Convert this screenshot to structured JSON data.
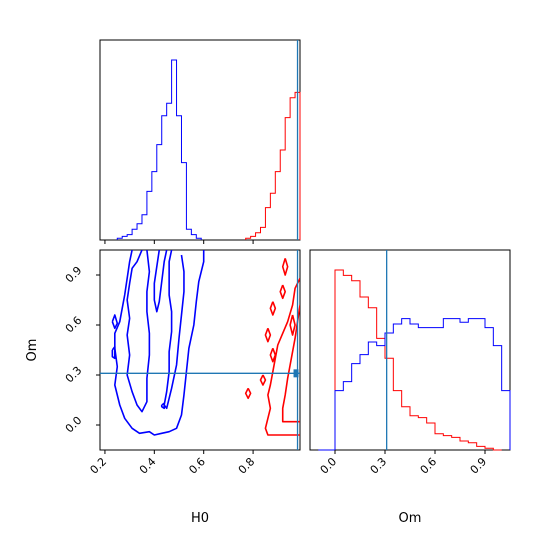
{
  "chart_data": {
    "type": "corner",
    "colors": {
      "series_a": "#0000ff",
      "series_b": "#ff0000",
      "truth": "#1f77b4"
    },
    "truth": {
      "H0": 0.98,
      "Om": 0.31
    },
    "panels": [
      {
        "id": "hist_H0",
        "type": "histogram",
        "xlim": [
          0.18,
          0.99
        ],
        "series": [
          {
            "color_key": "series_a",
            "bin_edges": [
              0.25,
              0.27,
              0.29,
              0.31,
              0.33,
              0.35,
              0.37,
              0.39,
              0.41,
              0.43,
              0.45,
              0.47,
              0.49,
              0.51,
              0.53,
              0.55,
              0.57,
              0.59
            ],
            "counts": [
              0.01,
              0.02,
              0.03,
              0.06,
              0.09,
              0.14,
              0.27,
              0.38,
              0.53,
              0.69,
              0.76,
              1.0,
              0.69,
              0.43,
              0.06,
              0.03,
              0.01
            ]
          },
          {
            "color_key": "series_b",
            "bin_edges": [
              0.77,
              0.79,
              0.81,
              0.83,
              0.85,
              0.87,
              0.89,
              0.91,
              0.93,
              0.95,
              0.97,
              0.99
            ],
            "counts": [
              0.01,
              0.02,
              0.04,
              0.07,
              0.18,
              0.26,
              0.38,
              0.5,
              0.68,
              0.79,
              0.82
            ]
          }
        ]
      },
      {
        "id": "hist_Om",
        "type": "histogram",
        "xlim": [
          -0.15,
          1.05
        ],
        "series": [
          {
            "color_key": "series_b",
            "bin_edges": [
              0.0,
              0.05,
              0.1,
              0.15,
              0.2,
              0.25,
              0.3,
              0.35,
              0.4,
              0.45,
              0.5,
              0.55,
              0.6,
              0.65,
              0.7,
              0.75,
              0.8,
              0.85,
              0.9,
              0.95,
              1.0
            ],
            "counts": [
              1.0,
              0.97,
              0.94,
              0.85,
              0.79,
              0.62,
              0.51,
              0.33,
              0.24,
              0.19,
              0.18,
              0.15,
              0.09,
              0.08,
              0.07,
              0.05,
              0.04,
              0.02,
              0.01,
              0.0
            ]
          },
          {
            "color_key": "series_a",
            "bin_edges": [
              -0.1,
              -0.05,
              0.0,
              0.05,
              0.1,
              0.15,
              0.2,
              0.25,
              0.3,
              0.35,
              0.4,
              0.45,
              0.5,
              0.55,
              0.6,
              0.65,
              0.7,
              0.75,
              0.8,
              0.85,
              0.9,
              0.95,
              1.0,
              1.05
            ],
            "counts": [
              0.0,
              0.0,
              0.33,
              0.38,
              0.48,
              0.53,
              0.6,
              0.58,
              0.65,
              0.7,
              0.73,
              0.7,
              0.68,
              0.68,
              0.68,
              0.73,
              0.73,
              0.71,
              0.73,
              0.73,
              0.68,
              0.58,
              0.33
            ]
          }
        ]
      },
      {
        "id": "contour_H0_Om",
        "type": "contour",
        "xlim": [
          0.18,
          0.99
        ],
        "ylim": [
          -0.15,
          1.05
        ],
        "series": [
          {
            "color_key": "series_a",
            "paths": [
              [
                [
                  0.31,
                  1.05
                ],
                [
                  0.3,
                  0.98
                ],
                [
                  0.29,
                  0.88
                ],
                [
                  0.28,
                  0.78
                ],
                [
                  0.27,
                  0.7
                ],
                [
                  0.26,
                  0.62
                ],
                [
                  0.24,
                  0.55
                ],
                [
                  0.24,
                  0.46
                ],
                [
                  0.25,
                  0.35
                ],
                [
                  0.24,
                  0.24
                ],
                [
                  0.26,
                  0.12
                ],
                [
                  0.28,
                  0.04
                ],
                [
                  0.31,
                  -0.02
                ],
                [
                  0.34,
                  -0.05
                ],
                [
                  0.38,
                  -0.04
                ],
                [
                  0.4,
                  -0.06
                ],
                [
                  0.43,
                  -0.05
                ],
                [
                  0.46,
                  -0.04
                ],
                [
                  0.49,
                  -0.02
                ],
                [
                  0.51,
                  0.06
                ],
                [
                  0.52,
                  0.18
                ],
                [
                  0.53,
                  0.32
                ],
                [
                  0.54,
                  0.46
                ],
                [
                  0.56,
                  0.6
                ],
                [
                  0.57,
                  0.74
                ],
                [
                  0.58,
                  0.86
                ],
                [
                  0.6,
                  0.98
                ],
                [
                  0.6,
                  1.05
                ]
              ],
              [
                [
                  0.35,
                  1.05
                ],
                [
                  0.33,
                  0.98
                ],
                [
                  0.31,
                  0.94
                ],
                [
                  0.3,
                  0.85
                ],
                [
                  0.29,
                  0.75
                ],
                [
                  0.3,
                  0.64
                ],
                [
                  0.29,
                  0.54
                ],
                [
                  0.3,
                  0.42
                ],
                [
                  0.29,
                  0.3
                ],
                [
                  0.31,
                  0.2
                ],
                [
                  0.33,
                  0.12
                ],
                [
                  0.35,
                  0.08
                ],
                [
                  0.37,
                  0.14
                ],
                [
                  0.37,
                  0.28
                ],
                [
                  0.38,
                  0.42
                ],
                [
                  0.38,
                  0.55
                ],
                [
                  0.37,
                  0.68
                ],
                [
                  0.37,
                  0.8
                ],
                [
                  0.38,
                  0.92
                ],
                [
                  0.37,
                  1.05
                ]
              ],
              [
                [
                  0.42,
                  1.05
                ],
                [
                  0.41,
                  0.95
                ],
                [
                  0.4,
                  0.85
                ],
                [
                  0.4,
                  0.75
                ],
                [
                  0.41,
                  0.68
                ],
                [
                  0.42,
                  0.74
                ],
                [
                  0.43,
                  0.86
                ],
                [
                  0.44,
                  0.98
                ],
                [
                  0.45,
                  1.05
                ]
              ],
              [
                [
                  0.47,
                  1.05
                ],
                [
                  0.46,
                  0.98
                ],
                [
                  0.46,
                  0.88
                ],
                [
                  0.46,
                  0.78
                ],
                [
                  0.47,
                  0.68
                ],
                [
                  0.47,
                  0.56
                ],
                [
                  0.46,
                  0.44
                ],
                [
                  0.46,
                  0.32
                ],
                [
                  0.45,
                  0.2
                ],
                [
                  0.44,
                  0.12
                ],
                [
                  0.45,
                  0.1
                ],
                [
                  0.47,
                  0.22
                ],
                [
                  0.49,
                  0.36
                ],
                [
                  0.5,
                  0.52
                ],
                [
                  0.51,
                  0.66
                ],
                [
                  0.52,
                  0.8
                ],
                [
                  0.52,
                  0.92
                ],
                [
                  0.51,
                  1.02
                ]
              ],
              [
                [
                  0.23,
                  0.62
                ],
                [
                  0.24,
                  0.66
                ],
                [
                  0.25,
                  0.61
                ],
                [
                  0.24,
                  0.58
                ],
                [
                  0.23,
                  0.62
                ]
              ],
              [
                [
                  0.23,
                  0.45
                ],
                [
                  0.24,
                  0.47
                ],
                [
                  0.24,
                  0.4
                ],
                [
                  0.23,
                  0.41
                ],
                [
                  0.23,
                  0.45
                ]
              ],
              [
                [
                  0.43,
                  0.12
                ],
                [
                  0.44,
                  0.13
                ],
                [
                  0.44,
                  0.1
                ],
                [
                  0.43,
                  0.11
                ],
                [
                  0.43,
                  0.12
                ]
              ]
            ]
          },
          {
            "color_key": "series_b",
            "paths": [
              [
                [
                  0.99,
                  0.88
                ],
                [
                  0.97,
                  0.82
                ],
                [
                  0.96,
                  0.72
                ],
                [
                  0.94,
                  0.62
                ],
                [
                  0.92,
                  0.55
                ],
                [
                  0.9,
                  0.48
                ],
                [
                  0.89,
                  0.4
                ],
                [
                  0.88,
                  0.32
                ],
                [
                  0.87,
                  0.24
                ],
                [
                  0.86,
                  0.18
                ],
                [
                  0.87,
                  0.1
                ],
                [
                  0.86,
                  0.04
                ],
                [
                  0.85,
                  -0.02
                ],
                [
                  0.86,
                  -0.06
                ],
                [
                  0.9,
                  -0.06
                ],
                [
                  0.94,
                  -0.06
                ],
                [
                  0.99,
                  -0.06
                ]
              ],
              [
                [
                  0.99,
                  0.72
                ],
                [
                  0.98,
                  0.62
                ],
                [
                  0.97,
                  0.52
                ],
                [
                  0.96,
                  0.44
                ],
                [
                  0.95,
                  0.36
                ],
                [
                  0.94,
                  0.28
                ],
                [
                  0.93,
                  0.18
                ],
                [
                  0.92,
                  0.1
                ],
                [
                  0.92,
                  0.02
                ],
                [
                  0.95,
                  0.02
                ],
                [
                  0.99,
                  0.02
                ]
              ],
              [
                [
                  0.93,
                  1.0
                ],
                [
                  0.92,
                  0.95
                ],
                [
                  0.93,
                  0.9
                ],
                [
                  0.94,
                  0.95
                ],
                [
                  0.93,
                  1.0
                ]
              ],
              [
                [
                  0.92,
                  0.84
                ],
                [
                  0.91,
                  0.8
                ],
                [
                  0.92,
                  0.76
                ],
                [
                  0.93,
                  0.8
                ],
                [
                  0.92,
                  0.84
                ]
              ],
              [
                [
                  0.88,
                  0.74
                ],
                [
                  0.87,
                  0.7
                ],
                [
                  0.88,
                  0.66
                ],
                [
                  0.89,
                  0.7
                ],
                [
                  0.88,
                  0.74
                ]
              ],
              [
                [
                  0.86,
                  0.58
                ],
                [
                  0.85,
                  0.54
                ],
                [
                  0.86,
                  0.5
                ],
                [
                  0.87,
                  0.54
                ],
                [
                  0.86,
                  0.58
                ]
              ],
              [
                [
                  0.88,
                  0.46
                ],
                [
                  0.87,
                  0.42
                ],
                [
                  0.88,
                  0.38
                ],
                [
                  0.89,
                  0.42
                ],
                [
                  0.88,
                  0.46
                ]
              ],
              [
                [
                  0.96,
                  0.66
                ],
                [
                  0.95,
                  0.6
                ],
                [
                  0.96,
                  0.54
                ],
                [
                  0.97,
                  0.6
                ],
                [
                  0.96,
                  0.66
                ]
              ],
              [
                [
                  0.78,
                  0.22
                ],
                [
                  0.77,
                  0.19
                ],
                [
                  0.78,
                  0.16
                ],
                [
                  0.79,
                  0.19
                ],
                [
                  0.78,
                  0.22
                ]
              ],
              [
                [
                  0.84,
                  0.3
                ],
                [
                  0.83,
                  0.27
                ],
                [
                  0.84,
                  0.24
                ],
                [
                  0.85,
                  0.27
                ],
                [
                  0.84,
                  0.3
                ]
              ]
            ]
          }
        ]
      }
    ],
    "axes": {
      "H0": {
        "label": "H0",
        "ticks": [
          0.2,
          0.4,
          0.6,
          0.8
        ],
        "tick_labels": [
          "0.2",
          "0.4",
          "0.6",
          "0.8"
        ]
      },
      "Om": {
        "label": "Om",
        "ticks": [
          0.0,
          0.3,
          0.6,
          0.9
        ],
        "tick_labels": [
          "0.0",
          "0.3",
          "0.6",
          "0.9"
        ]
      }
    }
  }
}
